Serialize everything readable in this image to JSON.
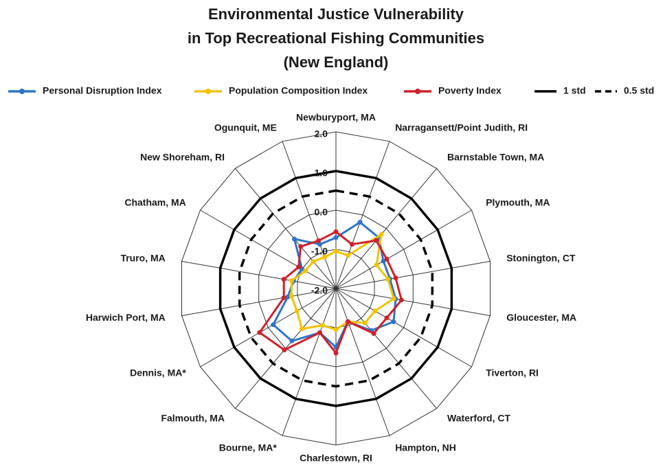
{
  "chart_data": {
    "type": "radar",
    "title": [
      "Environmental Justice Vulnerability",
      "in Top Recreational Fishing Communities",
      "(New England)"
    ],
    "categories": [
      "Newburyport, MA",
      "Narragansett/Point Judith, RI",
      "Barnstable Town, MA",
      "Plymouth, MA",
      "Stonington, CT",
      "Gloucester, MA",
      "Tiverton, RI",
      "Waterford, CT",
      "Hampton, NH",
      "Charlestown, RI",
      "Bourne, MA*",
      "Falmouth, MA",
      "Dennis, MA*",
      "Harwich Port, MA",
      "Truro, MA",
      "Chatham, MA",
      "New Shoreham, RI",
      "Ogunquit, ME"
    ],
    "series": [
      {
        "name": "Personal Disruption Index",
        "color": "#2e75c8",
        "style": "marker",
        "values": [
          -0.7,
          -0.2,
          -0.3,
          -0.6,
          -0.6,
          -0.45,
          -0.3,
          -0.6,
          -1.1,
          -0.5,
          -0.8,
          -0.25,
          -0.15,
          -0.75,
          -0.9,
          -1.0,
          -0.35,
          -0.8
        ]
      },
      {
        "name": "Population Composition Index",
        "color": "#f2c200",
        "style": "marker",
        "values": [
          -1.05,
          -1.1,
          -0.2,
          -0.8,
          -0.65,
          -0.5,
          -0.85,
          -0.85,
          -1.1,
          -0.95,
          -1.0,
          -0.65,
          -0.85,
          -0.85,
          -0.85,
          -1.1,
          -1.1,
          -1.15
        ]
      },
      {
        "name": "Poverty Index",
        "color": "#d0202a",
        "style": "marker",
        "values": [
          -0.55,
          -0.8,
          -0.4,
          -0.5,
          -0.45,
          -0.3,
          -0.5,
          -0.5,
          -1.1,
          -0.35,
          -0.8,
          0.05,
          0.25,
          -0.65,
          -0.65,
          -0.9,
          -0.6,
          -0.7
        ]
      },
      {
        "name": "1 std",
        "color": "#000000",
        "style": "solid",
        "values": [
          1,
          1,
          1,
          1,
          1,
          1,
          1,
          1,
          1,
          1,
          1,
          1,
          1,
          1,
          1,
          1,
          1,
          1
        ]
      },
      {
        "name": "0.5 std",
        "color": "#000000",
        "style": "dashed",
        "values": [
          0.5,
          0.5,
          0.5,
          0.5,
          0.5,
          0.5,
          0.5,
          0.5,
          0.5,
          0.5,
          0.5,
          0.5,
          0.5,
          0.5,
          0.5,
          0.5,
          0.5,
          0.5
        ]
      }
    ],
    "rlim": [
      -2,
      2
    ],
    "rticks": [
      {
        "value": -2,
        "label": "-2.0"
      },
      {
        "value": -1,
        "label": "-1.0"
      },
      {
        "value": 0,
        "label": "0.0"
      },
      {
        "value": 1,
        "label": "1.0"
      },
      {
        "value": 2,
        "label": "2.0"
      }
    ],
    "grid": true,
    "legend": "top"
  }
}
